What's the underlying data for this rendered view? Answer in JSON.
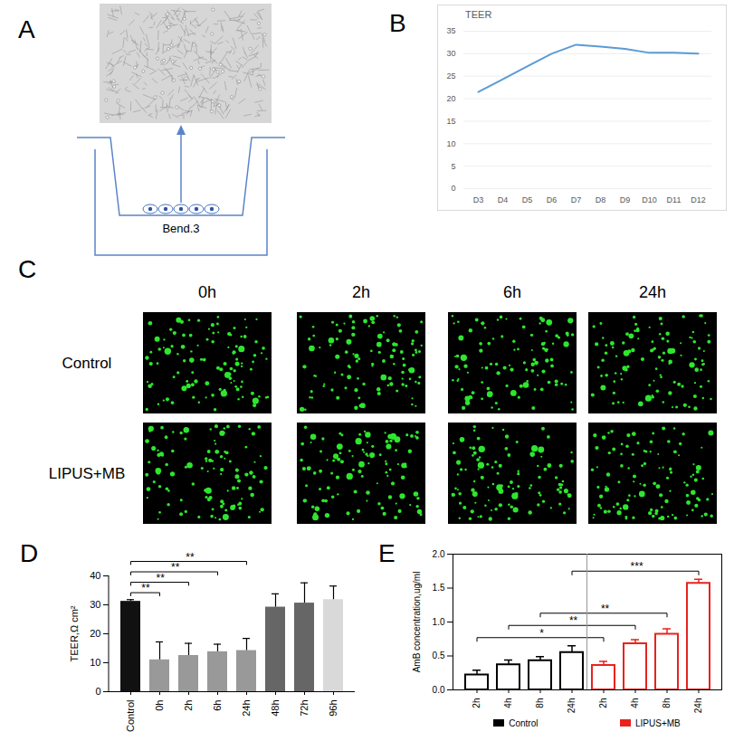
{
  "panel_A": {
    "letter": "A",
    "cell_line": "Bend.3"
  },
  "panel_C": {
    "letter": "C",
    "columns": [
      "0h",
      "2h",
      "6h",
      "24h"
    ],
    "rows": [
      "Control",
      "LIPUS+MB"
    ]
  },
  "chart_data": [
    {
      "panel": "B",
      "type": "line",
      "title": "TEER",
      "categories": [
        "D3",
        "D4",
        "D5",
        "D6",
        "D7",
        "D8",
        "D9",
        "D10",
        "D11",
        "D12"
      ],
      "values": [
        21.5,
        24.3,
        27.2,
        30,
        32,
        31.6,
        31.1,
        30.2,
        30.2,
        30
      ],
      "color": "#5b9bd5",
      "ylim": [
        0,
        35
      ],
      "yticks": [
        0,
        5,
        10,
        15,
        20,
        25,
        30,
        35
      ],
      "grid": true
    },
    {
      "panel": "D",
      "type": "bar",
      "y_label": "TEER,Ω cm²",
      "categories": [
        "Control",
        "0h",
        "2h",
        "6h",
        "24h",
        "48h",
        "72h",
        "96h"
      ],
      "values": [
        31.2,
        11,
        12.5,
        13.8,
        14.2,
        29.2,
        30.6,
        31.8
      ],
      "errors": [
        0.6,
        6.2,
        4.2,
        2.6,
        4.2,
        4.6,
        7,
        4.7
      ],
      "colors": [
        "#111111",
        "#999999",
        "#999999",
        "#999999",
        "#999999",
        "#666666",
        "#666666",
        "#d9d9d9"
      ],
      "ylim": [
        0,
        40
      ],
      "yticks": [
        0,
        10,
        20,
        30,
        40
      ],
      "comparisons": [
        {
          "from": 0,
          "to": 1,
          "label": "**"
        },
        {
          "from": 0,
          "to": 2,
          "label": "**"
        },
        {
          "from": 0,
          "to": 3,
          "label": "**"
        },
        {
          "from": 0,
          "to": 4,
          "label": "**"
        }
      ]
    },
    {
      "panel": "E",
      "type": "bar",
      "y_label": "AmB concentration,ug/ml",
      "categories": [
        "2h",
        "4h",
        "8h",
        "24h",
        "2h",
        "4h",
        "8h",
        "24h"
      ],
      "series": [
        {
          "name": "Control",
          "color": "#000000",
          "values": [
            0.22,
            0.37,
            0.43,
            0.55,
            null,
            null,
            null,
            null
          ],
          "errors": [
            0.07,
            0.07,
            0.06,
            0.1,
            null,
            null,
            null,
            null
          ]
        },
        {
          "name": "LIPUS+MB",
          "color": "#e8231e",
          "values": [
            null,
            null,
            null,
            null,
            0.36,
            0.68,
            0.82,
            1.57
          ],
          "errors": [
            null,
            null,
            null,
            null,
            0.06,
            0.06,
            0.08,
            0.06
          ]
        }
      ],
      "ylim": [
        0,
        2
      ],
      "yticks": [
        {
          "value": 0,
          "label": "0.0"
        },
        {
          "value": 0.5,
          "label": "0.5"
        },
        {
          "value": 1,
          "label": "1.0"
        },
        {
          "value": 1.5,
          "label": "1.5"
        },
        {
          "value": 2,
          "label": "2.0"
        }
      ],
      "legend": "bottom",
      "comparisons": [
        {
          "from": 0,
          "to": 4,
          "label": "*"
        },
        {
          "from": 1,
          "to": 5,
          "label": "**"
        },
        {
          "from": 2,
          "to": 6,
          "label": "**"
        },
        {
          "from": 3,
          "to": 7,
          "label": "***"
        }
      ]
    }
  ]
}
